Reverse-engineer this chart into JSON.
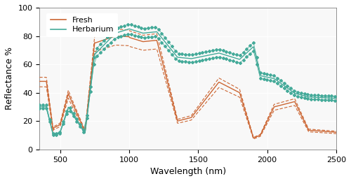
{
  "title": "",
  "xlabel": "Wavelength (nm)",
  "ylabel": "Reflectance %",
  "xlim": [
    350,
    2500
  ],
  "ylim": [
    0,
    100
  ],
  "xticks": [
    500,
    1000,
    1500,
    2000,
    2500
  ],
  "yticks": [
    0,
    20,
    40,
    60,
    80,
    100
  ],
  "fresh_color": "#CC6633",
  "herb_color": "#44AA99",
  "background": "#F5F5F5"
}
